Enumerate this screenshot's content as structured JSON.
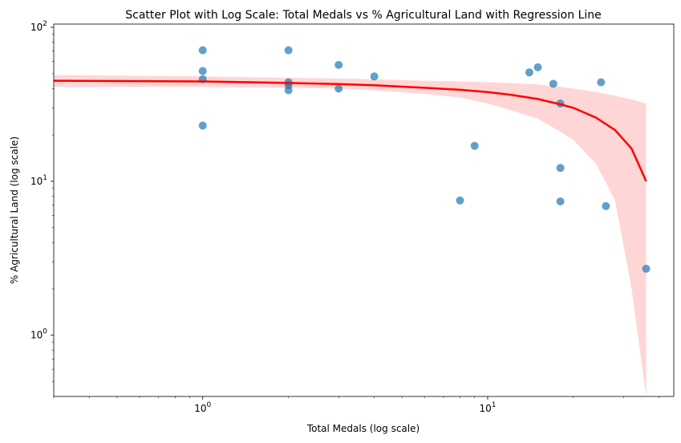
{
  "chart_data": {
    "type": "scatter",
    "title": "Scatter Plot with Log Scale: Total Medals vs % Agricultural Land with Regression Line",
    "xlabel": "Total Medals (log scale)",
    "ylabel": "% Agricultural Land (log scale)",
    "xscale": "log",
    "yscale": "log",
    "xlim": [
      0.3,
      45
    ],
    "ylim": [
      0.4,
      105
    ],
    "x_ticks": [
      {
        "value": 1,
        "base": "10",
        "exp": "0"
      },
      {
        "value": 10,
        "base": "10",
        "exp": "1"
      }
    ],
    "y_ticks": [
      {
        "value": 1,
        "base": "10",
        "exp": "0"
      },
      {
        "value": 10,
        "base": "10",
        "exp": "1"
      },
      {
        "value": 100,
        "base": "10",
        "exp": "2"
      }
    ],
    "grid": false,
    "points": {
      "color": "#1f77b4",
      "x": [
        1,
        1,
        1,
        1,
        2,
        2,
        2,
        2,
        3,
        3,
        4,
        8,
        9,
        14,
        15,
        17,
        18,
        18,
        18,
        25,
        26,
        36
      ],
      "y": [
        71,
        52,
        46,
        23,
        71,
        44,
        42,
        39,
        57,
        40,
        48,
        7.5,
        17,
        51,
        55,
        43,
        32,
        12.2,
        7.4,
        44,
        6.9,
        2.7
      ]
    },
    "regression": {
      "color": "#ff0000",
      "x": [
        0.3,
        1,
        2,
        3,
        4,
        6,
        8,
        10,
        12,
        15,
        18,
        20,
        24,
        28,
        32,
        36
      ],
      "y": [
        45,
        44.5,
        43.5,
        42.8,
        42,
        40.5,
        39.3,
        38,
        36.5,
        34.2,
        31.6,
        30,
        25.9,
        21.5,
        16.3,
        10
      ],
      "ci_upper": [
        49,
        48,
        47,
        46.5,
        46,
        45,
        44.5,
        44,
        43.5,
        42.5,
        41,
        40,
        38,
        36,
        34,
        32
      ],
      "ci_lower": [
        41,
        41,
        40.5,
        40,
        39,
        37,
        35,
        32,
        29,
        25.5,
        21,
        18.5,
        13,
        7.5,
        2,
        0.4
      ],
      "ci_color": "#ffcccc"
    }
  }
}
